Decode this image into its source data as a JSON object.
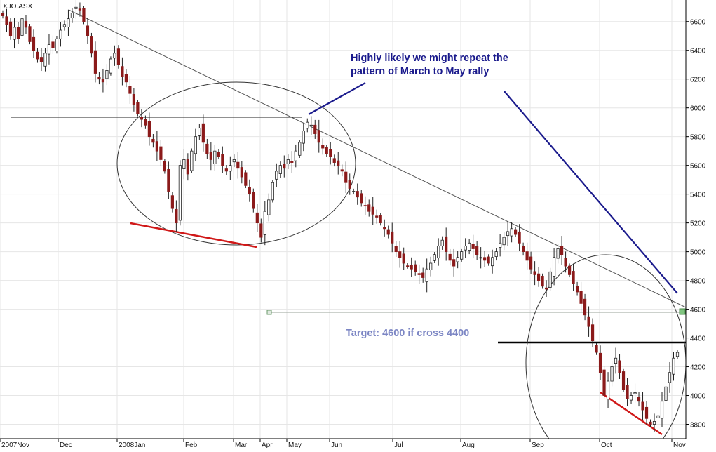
{
  "chart_data": {
    "type": "candlestick",
    "symbol": "XJO.ASX",
    "ylim": [
      3700,
      6750
    ],
    "y_ticks": [
      3800,
      4000,
      4200,
      4400,
      4600,
      4800,
      5000,
      5200,
      5400,
      5600,
      5800,
      6000,
      6200,
      6400,
      6600
    ],
    "x_ticks": [
      "2007Nov",
      "Dec",
      "2008Jan",
      "Feb",
      "Mar",
      "Apr",
      "May",
      "Jun",
      "Jul",
      "Aug",
      "Sep",
      "Oct",
      "Nov"
    ],
    "grid": true,
    "closes": [
      6640,
      6580,
      6500,
      6560,
      6480,
      6620,
      6560,
      6460,
      6400,
      6340,
      6320,
      6380,
      6440,
      6420,
      6480,
      6540,
      6580,
      6620,
      6660,
      6700,
      6680,
      6600,
      6500,
      6380,
      6240,
      6200,
      6180,
      6260,
      6340,
      6380,
      6300,
      6220,
      6180,
      6100,
      6020,
      5960,
      5920,
      5880,
      5800,
      5760,
      5700,
      5640,
      5560,
      5420,
      5300,
      5200,
      5600,
      5640,
      5540,
      5700,
      5800,
      5860,
      5760,
      5680,
      5640,
      5700,
      5660,
      5600,
      5560,
      5600,
      5640,
      5580,
      5520,
      5460,
      5400,
      5300,
      5200,
      5100,
      5280,
      5360,
      5480,
      5560,
      5600,
      5580,
      5640,
      5620,
      5700,
      5760,
      5840,
      5900,
      5880,
      5820,
      5760,
      5720,
      5680,
      5660,
      5620,
      5600,
      5560,
      5480,
      5440,
      5420,
      5380,
      5340,
      5320,
      5280,
      5260,
      5240,
      5200,
      5160,
      5120,
      5060,
      5000,
      4960,
      4920,
      4900,
      4880,
      4860,
      4840,
      4820,
      4880,
      4920,
      4980,
      5040,
      5080,
      5000,
      4940,
      4900,
      4960,
      5000,
      5040,
      5060,
      5020,
      4980,
      4960,
      4940,
      4920,
      4960,
      5000,
      5060,
      5100,
      5140,
      5160,
      5120,
      5060,
      5000,
      4940,
      4880,
      4840,
      4800,
      4760,
      4740,
      4860,
      4960,
      5020,
      4980,
      4900,
      4840,
      4780,
      4720,
      4640,
      4560,
      4480,
      4380,
      4300,
      4160,
      4000,
      4100,
      4200,
      4260,
      4160,
      4040,
      3980,
      4000,
      4020,
      3960,
      3900,
      3840,
      3800,
      3820,
      3860,
      3960,
      4060,
      4160,
      4260,
      4300
    ],
    "resistance_line": {
      "label": "",
      "y": 5960
    },
    "target_line": {
      "label": "",
      "y": 4610
    },
    "break_line": {
      "label": "",
      "y": 4400
    }
  },
  "annotations": {
    "pattern_text_1": "Highly likely we might repeat the",
    "pattern_text_2": "pattern of March to May rally",
    "target_text": "Target: 4600 if cross 4400"
  },
  "colors": {
    "up": "#ffffff",
    "down": "#8b1a1a",
    "grid": "#e6e6e6",
    "blue_note": "#1a1a8c",
    "target_note": "#7c86c4",
    "red_support": "#d01818",
    "trend": "#555555"
  }
}
